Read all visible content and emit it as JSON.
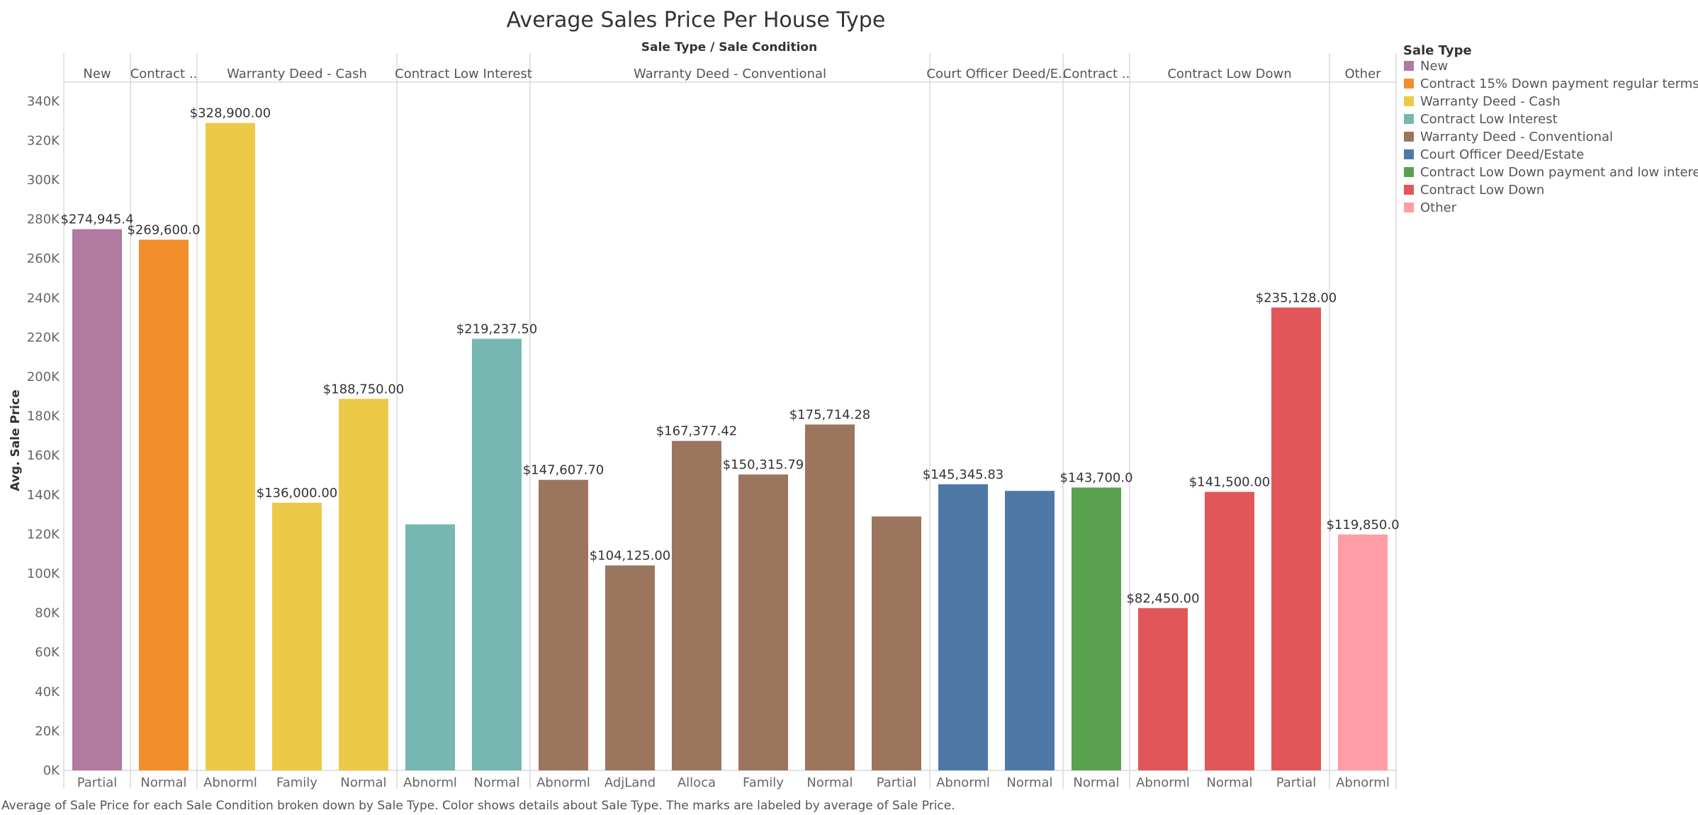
{
  "chart_data": {
    "type": "bar",
    "title": "Average Sales Price Per House Type",
    "column_header": "Sale Type  /  Sale Condition",
    "ylabel": "Avg. Sale Price",
    "ylim": [
      0,
      350000
    ],
    "yticks": [
      0,
      20000,
      40000,
      60000,
      80000,
      100000,
      120000,
      140000,
      160000,
      180000,
      200000,
      220000,
      240000,
      260000,
      280000,
      300000,
      320000,
      340000
    ],
    "ytick_labels": [
      "0K",
      "20K",
      "40K",
      "60K",
      "80K",
      "100K",
      "120K",
      "140K",
      "160K",
      "180K",
      "200K",
      "220K",
      "240K",
      "260K",
      "280K",
      "300K",
      "320K",
      "340K"
    ],
    "groups": [
      {
        "name": "New",
        "header_text": "New",
        "color": "#b07aa1",
        "bars": [
          {
            "category": "Partial",
            "value": 274945.4,
            "label": "$274,945.4"
          }
        ]
      },
      {
        "name": "Contract 15% Down payment regular terms",
        "header_text": "Contract ..",
        "color": "#f28e2b",
        "bars": [
          {
            "category": "Normal",
            "value": 269600,
            "label": "$269,600.0"
          }
        ]
      },
      {
        "name": "Warranty Deed - Cash",
        "header_text": "Warranty Deed - Cash",
        "color": "#edc948",
        "bars": [
          {
            "category": "Abnorml",
            "value": 328900,
            "label": "$328,900.00"
          },
          {
            "category": "Family",
            "value": 136000,
            "label": "$136,000.00"
          },
          {
            "category": "Normal",
            "value": 188750,
            "label": "$188,750.00"
          }
        ]
      },
      {
        "name": "Contract Low Interest",
        "header_text": "Contract Low Interest",
        "color": "#76b7b2",
        "bars": [
          {
            "category": "Abnorml",
            "value": 125000,
            "label": ""
          },
          {
            "category": "Normal",
            "value": 219237.5,
            "label": "$219,237.50"
          }
        ]
      },
      {
        "name": "Warranty Deed - Conventional",
        "header_text": "Warranty Deed - Conventional",
        "color": "#9c755f",
        "bars": [
          {
            "category": "Abnorml",
            "value": 147607.7,
            "label": "$147,607.70"
          },
          {
            "category": "AdjLand",
            "value": 104125,
            "label": "$104,125.00"
          },
          {
            "category": "Alloca",
            "value": 167377.42,
            "label": "$167,377.42"
          },
          {
            "category": "Family",
            "value": 150315.79,
            "label": "$150,315.79"
          },
          {
            "category": "Normal",
            "value": 175714.28,
            "label": "$175,714.28"
          },
          {
            "category": "Partial",
            "value": 129000,
            "label": ""
          }
        ]
      },
      {
        "name": "Court Officer Deed/Estate",
        "header_text": "Court Officer Deed/E..",
        "color": "#4e79a7",
        "bars": [
          {
            "category": "Abnorml",
            "value": 145345.83,
            "label": "$145,345.83"
          },
          {
            "category": "Normal",
            "value": 142000,
            "label": ""
          }
        ]
      },
      {
        "name": "Contract Low Down payment and low interest",
        "header_text": "Contract ..",
        "color": "#59a14f",
        "bars": [
          {
            "category": "Normal",
            "value": 143700,
            "label": "$143,700.0"
          }
        ]
      },
      {
        "name": "Contract Low Down",
        "header_text": "Contract Low Down",
        "color": "#e15759",
        "bars": [
          {
            "category": "Abnorml",
            "value": 82450,
            "label": "$82,450.00"
          },
          {
            "category": "Normal",
            "value": 141500,
            "label": "$141,500.00"
          },
          {
            "category": "Partial",
            "value": 235128,
            "label": "$235,128.00"
          }
        ]
      },
      {
        "name": "Other",
        "header_text": "Other",
        "color": "#ff9da7",
        "bars": [
          {
            "category": "Abnorml",
            "value": 119850,
            "label": "$119,850.0"
          }
        ]
      }
    ],
    "legend": {
      "title": "Sale Type",
      "placement": "right",
      "items": [
        {
          "label": "New",
          "color": "#b07aa1"
        },
        {
          "label": "Contract 15% Down payment regular terms",
          "color": "#f28e2b"
        },
        {
          "label": "Warranty Deed - Cash",
          "color": "#edc948"
        },
        {
          "label": "Contract Low Interest",
          "color": "#76b7b2"
        },
        {
          "label": "Warranty Deed - Conventional",
          "color": "#9c755f"
        },
        {
          "label": "Court Officer Deed/Estate",
          "color": "#4e79a7"
        },
        {
          "label": "Contract Low Down payment and low interest",
          "color": "#59a14f"
        },
        {
          "label": "Contract Low Down",
          "color": "#e15759"
        },
        {
          "label": "Other",
          "color": "#ff9da7"
        }
      ]
    },
    "grid": false,
    "caption": "Average of Sale Price for each Sale Condition broken down by Sale Type.  Color shows details about Sale Type.  The marks are labeled by average of Sale Price."
  }
}
